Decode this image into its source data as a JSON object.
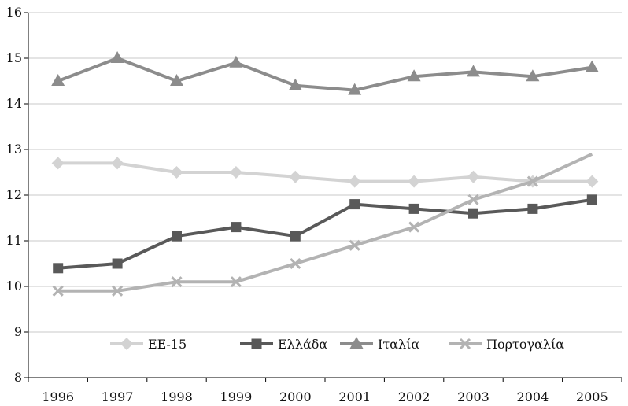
{
  "chart_data": {
    "type": "line",
    "title": "",
    "xlabel": "",
    "ylabel": "",
    "categories": [
      "1996",
      "1997",
      "1998",
      "1999",
      "2000",
      "2001",
      "2002",
      "2003",
      "2004",
      "2005"
    ],
    "ylim": [
      8,
      16
    ],
    "yticks": [
      8,
      9,
      10,
      11,
      12,
      13,
      14,
      15,
      16
    ],
    "grid": "horizontal",
    "legend_position": "bottom-inside",
    "series": [
      {
        "name": "ΕΕ-15",
        "color": "#d3d3d3",
        "marker": "diamond",
        "values": [
          12.7,
          12.7,
          12.5,
          12.5,
          12.4,
          12.3,
          12.3,
          12.4,
          12.3,
          12.3
        ]
      },
      {
        "name": "Ελλάδα",
        "color": "#595959",
        "marker": "square",
        "values": [
          10.4,
          10.5,
          11.1,
          11.3,
          11.1,
          11.8,
          11.7,
          11.6,
          11.7,
          11.9
        ]
      },
      {
        "name": "Ιταλία",
        "color": "#8c8c8c",
        "marker": "triangle",
        "values": [
          14.5,
          15.0,
          14.5,
          14.9,
          14.4,
          14.3,
          14.6,
          14.7,
          14.6,
          14.8
        ]
      },
      {
        "name": "Πορτογαλία",
        "color": "#b3b3b3",
        "marker": "cross",
        "values": [
          9.9,
          9.9,
          10.1,
          10.1,
          10.5,
          10.9,
          11.3,
          11.9,
          12.3,
          12.9
        ]
      }
    ]
  }
}
